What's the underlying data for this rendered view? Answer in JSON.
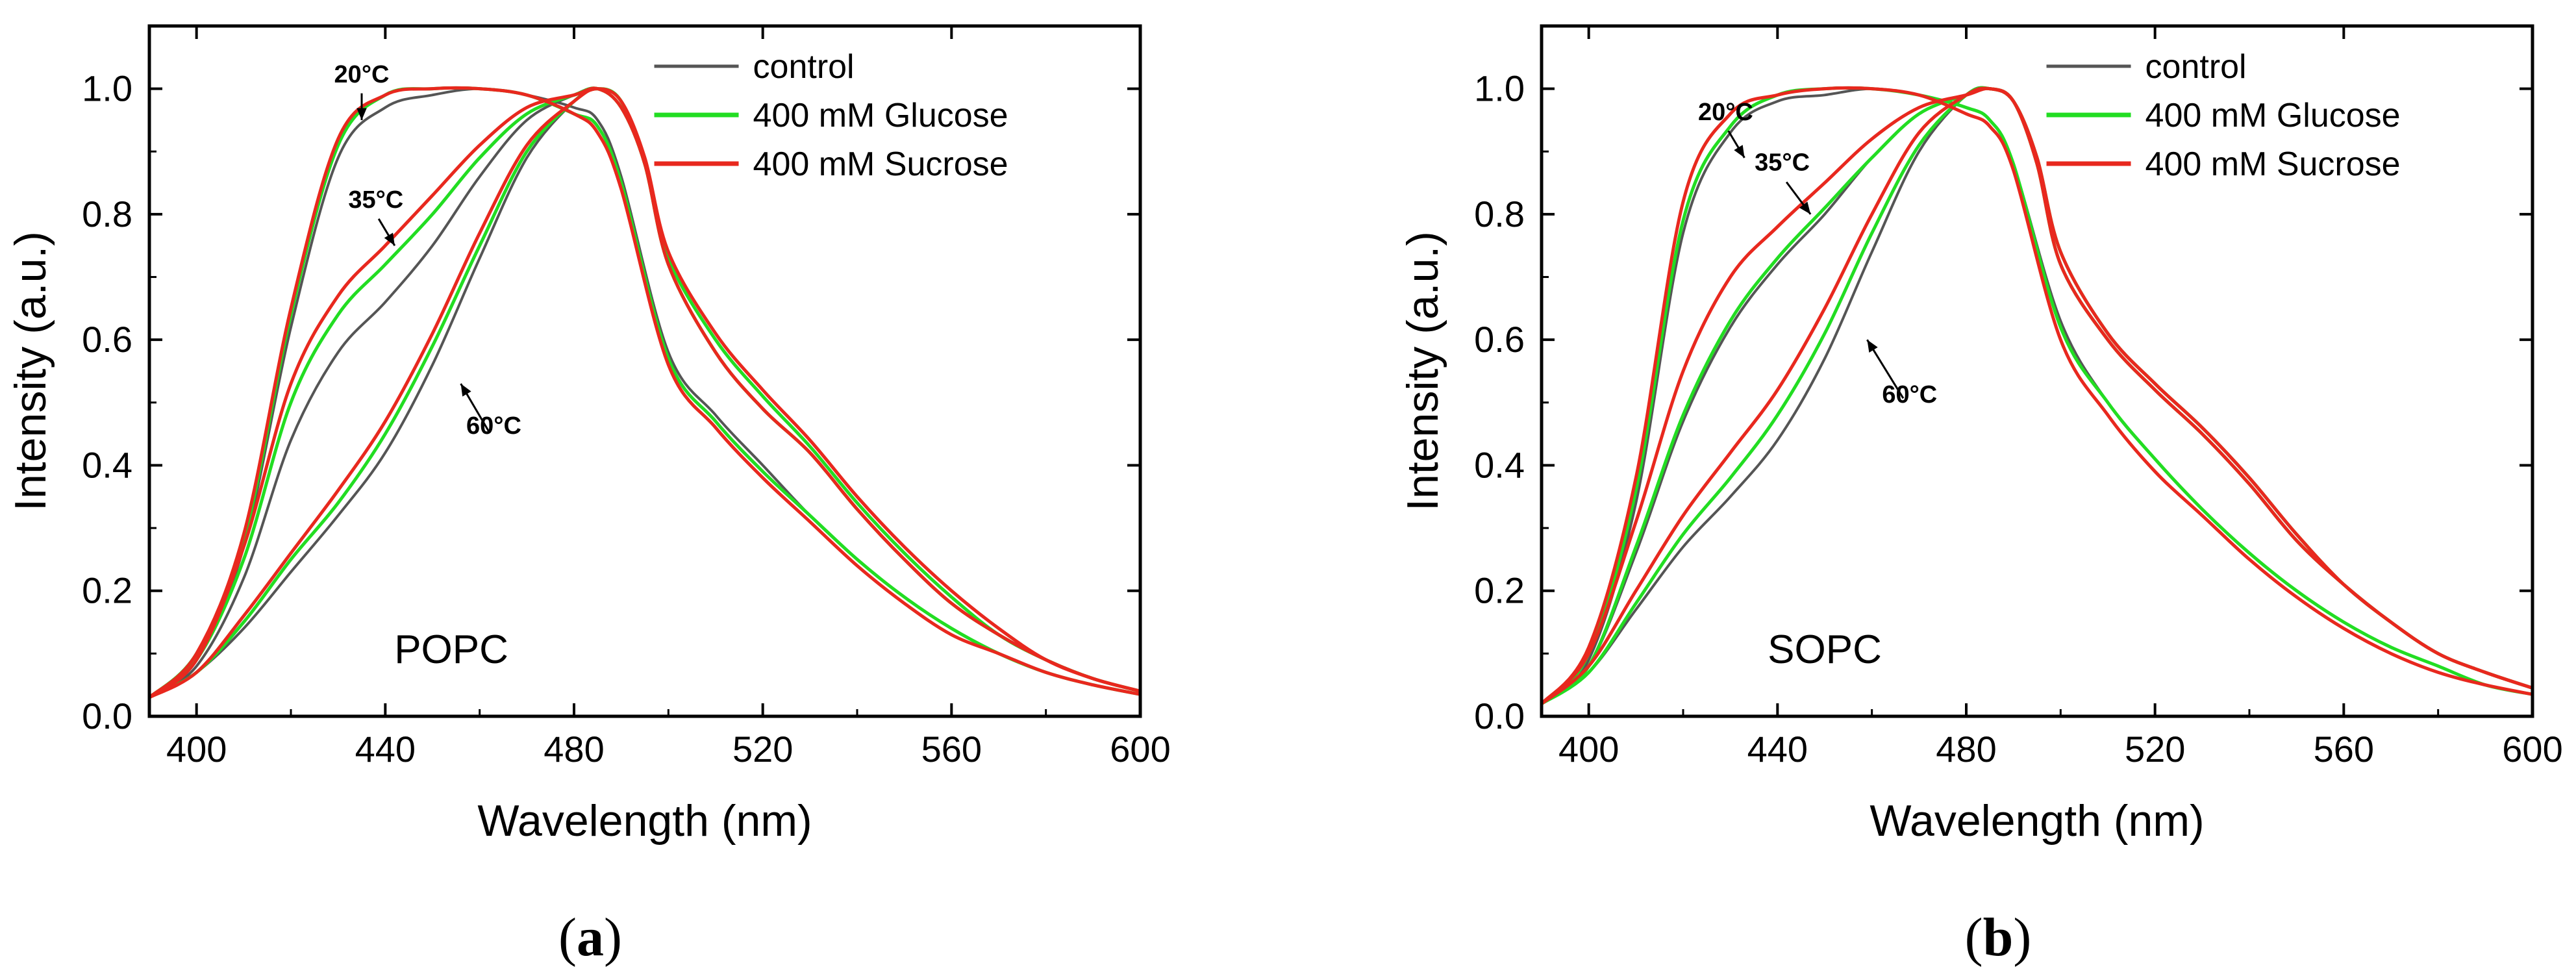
{
  "colors": {
    "control": "#555555",
    "glucose": "#22dd22",
    "sucrose": "#e8281e"
  },
  "series_labels": [
    "control",
    "400 mM Glucose",
    "400 mM Sucrose"
  ],
  "chart_data": [
    {
      "type": "line",
      "panel_label": "a",
      "lipid_label": "POPC",
      "xlabel": "Wavelength (nm)",
      "ylabel": "Intensity (a.u.)",
      "xlim": [
        390,
        600
      ],
      "ylim": [
        0.0,
        1.1
      ],
      "xticks": [
        "400",
        "440",
        "480",
        "520",
        "560",
        "600"
      ],
      "yticks": [
        "0.0",
        "0.2",
        "0.4",
        "0.6",
        "0.8",
        "1.0"
      ],
      "legend_position": "top-right",
      "annotations": [
        {
          "text": "20°C",
          "temp": "20",
          "tx": 435,
          "ty": 1.01,
          "ax": 435,
          "ay": 0.95
        },
        {
          "text": "35°C",
          "temp": "35",
          "tx": 438,
          "ty": 0.81,
          "ax": 442,
          "ay": 0.75
        },
        {
          "text": "60°C",
          "temp": "60",
          "tx": 463,
          "ty": 0.45,
          "ax": 456,
          "ay": 0.53
        }
      ],
      "series": [
        {
          "name": "control",
          "temp": "20",
          "x": [
            390,
            400,
            410,
            420,
            430,
            440,
            450,
            460,
            470,
            480,
            485,
            490,
            500,
            510,
            520,
            530,
            540,
            550,
            560,
            570,
            580,
            590,
            600
          ],
          "y": [
            0.03,
            0.09,
            0.27,
            0.62,
            0.89,
            0.97,
            0.99,
            1.0,
            0.99,
            0.97,
            0.95,
            0.86,
            0.58,
            0.48,
            0.4,
            0.32,
            0.25,
            0.19,
            0.14,
            0.1,
            0.07,
            0.05,
            0.035
          ]
        },
        {
          "name": "400 mM Glucose",
          "temp": "20",
          "x": [
            390,
            400,
            410,
            420,
            430,
            440,
            450,
            460,
            470,
            480,
            485,
            490,
            500,
            510,
            520,
            530,
            540,
            550,
            560,
            570,
            580,
            590,
            600
          ],
          "y": [
            0.03,
            0.1,
            0.28,
            0.64,
            0.91,
            0.99,
            1.0,
            1.0,
            0.99,
            0.96,
            0.94,
            0.85,
            0.57,
            0.47,
            0.39,
            0.32,
            0.25,
            0.19,
            0.14,
            0.1,
            0.07,
            0.05,
            0.035
          ]
        },
        {
          "name": "400 mM Sucrose",
          "temp": "20",
          "x": [
            390,
            400,
            410,
            420,
            430,
            440,
            450,
            460,
            470,
            480,
            485,
            490,
            500,
            510,
            520,
            530,
            540,
            550,
            560,
            570,
            580,
            590,
            600
          ],
          "y": [
            0.03,
            0.1,
            0.29,
            0.65,
            0.92,
            0.99,
            1.0,
            1.0,
            0.99,
            0.96,
            0.93,
            0.84,
            0.56,
            0.46,
            0.38,
            0.31,
            0.24,
            0.18,
            0.13,
            0.1,
            0.07,
            0.05,
            0.035
          ]
        },
        {
          "name": "control",
          "temp": "35",
          "x": [
            390,
            400,
            410,
            420,
            430,
            440,
            450,
            460,
            470,
            480,
            485,
            490,
            495,
            500,
            510,
            520,
            530,
            540,
            550,
            560,
            570,
            580,
            590,
            600
          ],
          "y": [
            0.03,
            0.08,
            0.22,
            0.44,
            0.58,
            0.66,
            0.75,
            0.86,
            0.95,
            0.99,
            1.0,
            0.97,
            0.88,
            0.72,
            0.58,
            0.49,
            0.42,
            0.33,
            0.25,
            0.18,
            0.13,
            0.09,
            0.06,
            0.04
          ]
        },
        {
          "name": "400 mM Glucose",
          "temp": "35",
          "x": [
            390,
            400,
            410,
            420,
            430,
            440,
            450,
            460,
            470,
            480,
            485,
            490,
            495,
            500,
            510,
            520,
            530,
            540,
            550,
            560,
            570,
            580,
            590,
            600
          ],
          "y": [
            0.03,
            0.09,
            0.25,
            0.5,
            0.64,
            0.72,
            0.8,
            0.89,
            0.96,
            0.99,
            1.0,
            0.97,
            0.88,
            0.72,
            0.58,
            0.49,
            0.42,
            0.33,
            0.25,
            0.18,
            0.13,
            0.09,
            0.06,
            0.04
          ]
        },
        {
          "name": "400 mM Sucrose",
          "temp": "35",
          "x": [
            390,
            400,
            410,
            420,
            430,
            440,
            450,
            460,
            470,
            480,
            485,
            490,
            495,
            500,
            510,
            520,
            530,
            540,
            550,
            560,
            570,
            580,
            590,
            600
          ],
          "y": [
            0.03,
            0.09,
            0.27,
            0.53,
            0.67,
            0.75,
            0.83,
            0.91,
            0.97,
            0.99,
            1.0,
            0.97,
            0.88,
            0.72,
            0.58,
            0.49,
            0.42,
            0.33,
            0.25,
            0.18,
            0.13,
            0.09,
            0.06,
            0.04
          ]
        },
        {
          "name": "control",
          "temp": "60",
          "x": [
            390,
            400,
            410,
            420,
            430,
            440,
            450,
            460,
            470,
            480,
            485,
            490,
            495,
            500,
            510,
            520,
            530,
            540,
            550,
            560,
            570,
            580,
            590,
            600
          ],
          "y": [
            0.03,
            0.07,
            0.14,
            0.23,
            0.32,
            0.42,
            0.56,
            0.73,
            0.89,
            0.98,
            1.0,
            0.98,
            0.88,
            0.73,
            0.6,
            0.51,
            0.43,
            0.34,
            0.26,
            0.19,
            0.13,
            0.09,
            0.06,
            0.04
          ]
        },
        {
          "name": "400 mM Glucose",
          "temp": "60",
          "x": [
            390,
            400,
            410,
            420,
            430,
            440,
            450,
            460,
            470,
            480,
            485,
            490,
            495,
            500,
            510,
            520,
            530,
            540,
            550,
            560,
            570,
            580,
            590,
            600
          ],
          "y": [
            0.03,
            0.07,
            0.15,
            0.25,
            0.34,
            0.45,
            0.59,
            0.75,
            0.9,
            0.98,
            1.0,
            0.98,
            0.88,
            0.73,
            0.6,
            0.51,
            0.43,
            0.34,
            0.26,
            0.19,
            0.13,
            0.09,
            0.06,
            0.04
          ]
        },
        {
          "name": "400 mM Sucrose",
          "temp": "60",
          "x": [
            390,
            400,
            410,
            420,
            430,
            440,
            450,
            460,
            470,
            480,
            485,
            490,
            495,
            500,
            510,
            520,
            530,
            540,
            550,
            560,
            570,
            580,
            590,
            600
          ],
          "y": [
            0.03,
            0.07,
            0.16,
            0.26,
            0.36,
            0.47,
            0.61,
            0.77,
            0.91,
            0.98,
            1.0,
            0.98,
            0.89,
            0.74,
            0.61,
            0.52,
            0.44,
            0.35,
            0.27,
            0.2,
            0.14,
            0.09,
            0.06,
            0.04
          ]
        }
      ]
    },
    {
      "type": "line",
      "panel_label": "b",
      "lipid_label": "SOPC",
      "xlabel": "Wavelength (nm)",
      "ylabel": "Intensity (a.u.)",
      "xlim": [
        390,
        600
      ],
      "ylim": [
        0.0,
        1.1
      ],
      "xticks": [
        "400",
        "440",
        "480",
        "520",
        "560",
        "600"
      ],
      "yticks": [
        "0.0",
        "0.2",
        "0.4",
        "0.6",
        "0.8",
        "1.0"
      ],
      "legend_position": "top-right",
      "annotations": [
        {
          "text": "20°C",
          "temp": "20",
          "tx": 429,
          "ty": 0.95,
          "ax": 433,
          "ay": 0.89
        },
        {
          "text": "35°C",
          "temp": "35",
          "tx": 441,
          "ty": 0.87,
          "ax": 447,
          "ay": 0.8
        },
        {
          "text": "60°C",
          "temp": "60",
          "tx": 468,
          "ty": 0.5,
          "ax": 459,
          "ay": 0.6
        }
      ],
      "series": [
        {
          "name": "control",
          "temp": "20",
          "x": [
            390,
            400,
            410,
            420,
            430,
            440,
            450,
            460,
            470,
            480,
            485,
            490,
            500,
            510,
            520,
            530,
            540,
            550,
            560,
            570,
            580,
            590,
            600
          ],
          "y": [
            0.02,
            0.09,
            0.34,
            0.77,
            0.93,
            0.98,
            0.99,
            1.0,
            0.99,
            0.97,
            0.95,
            0.88,
            0.63,
            0.5,
            0.41,
            0.33,
            0.26,
            0.2,
            0.15,
            0.11,
            0.08,
            0.05,
            0.035
          ]
        },
        {
          "name": "400 mM Glucose",
          "temp": "20",
          "x": [
            390,
            400,
            410,
            420,
            430,
            440,
            450,
            460,
            470,
            480,
            485,
            490,
            500,
            510,
            520,
            530,
            540,
            550,
            560,
            570,
            580,
            590,
            600
          ],
          "y": [
            0.02,
            0.1,
            0.36,
            0.79,
            0.94,
            0.99,
            1.0,
            1.0,
            0.99,
            0.97,
            0.95,
            0.88,
            0.62,
            0.5,
            0.41,
            0.33,
            0.26,
            0.2,
            0.15,
            0.11,
            0.08,
            0.05,
            0.035
          ]
        },
        {
          "name": "400 mM Sucrose",
          "temp": "20",
          "x": [
            390,
            400,
            410,
            420,
            430,
            440,
            450,
            460,
            470,
            480,
            485,
            490,
            500,
            510,
            520,
            530,
            540,
            550,
            560,
            570,
            580,
            590,
            600
          ],
          "y": [
            0.02,
            0.11,
            0.38,
            0.82,
            0.96,
            0.99,
            1.0,
            1.0,
            0.99,
            0.96,
            0.94,
            0.87,
            0.6,
            0.48,
            0.39,
            0.32,
            0.25,
            0.19,
            0.14,
            0.1,
            0.07,
            0.05,
            0.035
          ]
        },
        {
          "name": "control",
          "temp": "35",
          "x": [
            390,
            400,
            410,
            420,
            430,
            440,
            450,
            460,
            470,
            480,
            485,
            490,
            495,
            500,
            510,
            520,
            530,
            540,
            550,
            560,
            570,
            580,
            590,
            600
          ],
          "y": [
            0.02,
            0.08,
            0.26,
            0.47,
            0.62,
            0.72,
            0.8,
            0.89,
            0.96,
            0.99,
            1.0,
            0.98,
            0.88,
            0.72,
            0.6,
            0.52,
            0.45,
            0.37,
            0.28,
            0.21,
            0.15,
            0.1,
            0.07,
            0.045
          ]
        },
        {
          "name": "400 mM Glucose",
          "temp": "35",
          "x": [
            390,
            400,
            410,
            420,
            430,
            440,
            450,
            460,
            470,
            480,
            485,
            490,
            495,
            500,
            510,
            520,
            530,
            540,
            550,
            560,
            570,
            580,
            590,
            600
          ],
          "y": [
            0.02,
            0.08,
            0.27,
            0.48,
            0.63,
            0.73,
            0.81,
            0.89,
            0.96,
            0.99,
            1.0,
            0.98,
            0.88,
            0.72,
            0.6,
            0.52,
            0.45,
            0.37,
            0.28,
            0.21,
            0.15,
            0.1,
            0.07,
            0.045
          ]
        },
        {
          "name": "400 mM Sucrose",
          "temp": "35",
          "x": [
            390,
            400,
            410,
            420,
            430,
            440,
            450,
            460,
            470,
            480,
            485,
            490,
            495,
            500,
            510,
            520,
            530,
            540,
            550,
            560,
            570,
            580,
            590,
            600
          ],
          "y": [
            0.02,
            0.1,
            0.31,
            0.55,
            0.7,
            0.78,
            0.85,
            0.92,
            0.97,
            0.99,
            1.0,
            0.98,
            0.88,
            0.72,
            0.6,
            0.52,
            0.45,
            0.37,
            0.28,
            0.21,
            0.15,
            0.1,
            0.07,
            0.045
          ]
        },
        {
          "name": "control",
          "temp": "60",
          "x": [
            390,
            400,
            410,
            420,
            430,
            440,
            450,
            460,
            470,
            480,
            485,
            490,
            495,
            500,
            510,
            520,
            530,
            540,
            550,
            560,
            570,
            580,
            590,
            600
          ],
          "y": [
            0.02,
            0.07,
            0.17,
            0.27,
            0.35,
            0.44,
            0.57,
            0.74,
            0.9,
            0.99,
            1.0,
            0.98,
            0.89,
            0.74,
            0.61,
            0.53,
            0.46,
            0.38,
            0.29,
            0.21,
            0.15,
            0.1,
            0.07,
            0.045
          ]
        },
        {
          "name": "400 mM Glucose",
          "temp": "60",
          "x": [
            390,
            400,
            410,
            420,
            430,
            440,
            450,
            460,
            470,
            480,
            485,
            490,
            495,
            500,
            510,
            520,
            530,
            540,
            550,
            560,
            570,
            580,
            590,
            600
          ],
          "y": [
            0.02,
            0.07,
            0.18,
            0.29,
            0.38,
            0.48,
            0.61,
            0.77,
            0.91,
            0.99,
            1.0,
            0.98,
            0.89,
            0.74,
            0.61,
            0.53,
            0.46,
            0.38,
            0.29,
            0.21,
            0.15,
            0.1,
            0.07,
            0.045
          ]
        },
        {
          "name": "400 mM Sucrose",
          "temp": "60",
          "x": [
            390,
            400,
            410,
            420,
            430,
            440,
            450,
            460,
            470,
            480,
            485,
            490,
            495,
            500,
            510,
            520,
            530,
            540,
            550,
            560,
            570,
            580,
            590,
            600
          ],
          "y": [
            0.02,
            0.08,
            0.2,
            0.32,
            0.42,
            0.52,
            0.65,
            0.8,
            0.93,
            0.99,
            1.0,
            0.98,
            0.89,
            0.74,
            0.61,
            0.53,
            0.46,
            0.38,
            0.29,
            0.21,
            0.15,
            0.1,
            0.07,
            0.045
          ]
        }
      ]
    }
  ]
}
